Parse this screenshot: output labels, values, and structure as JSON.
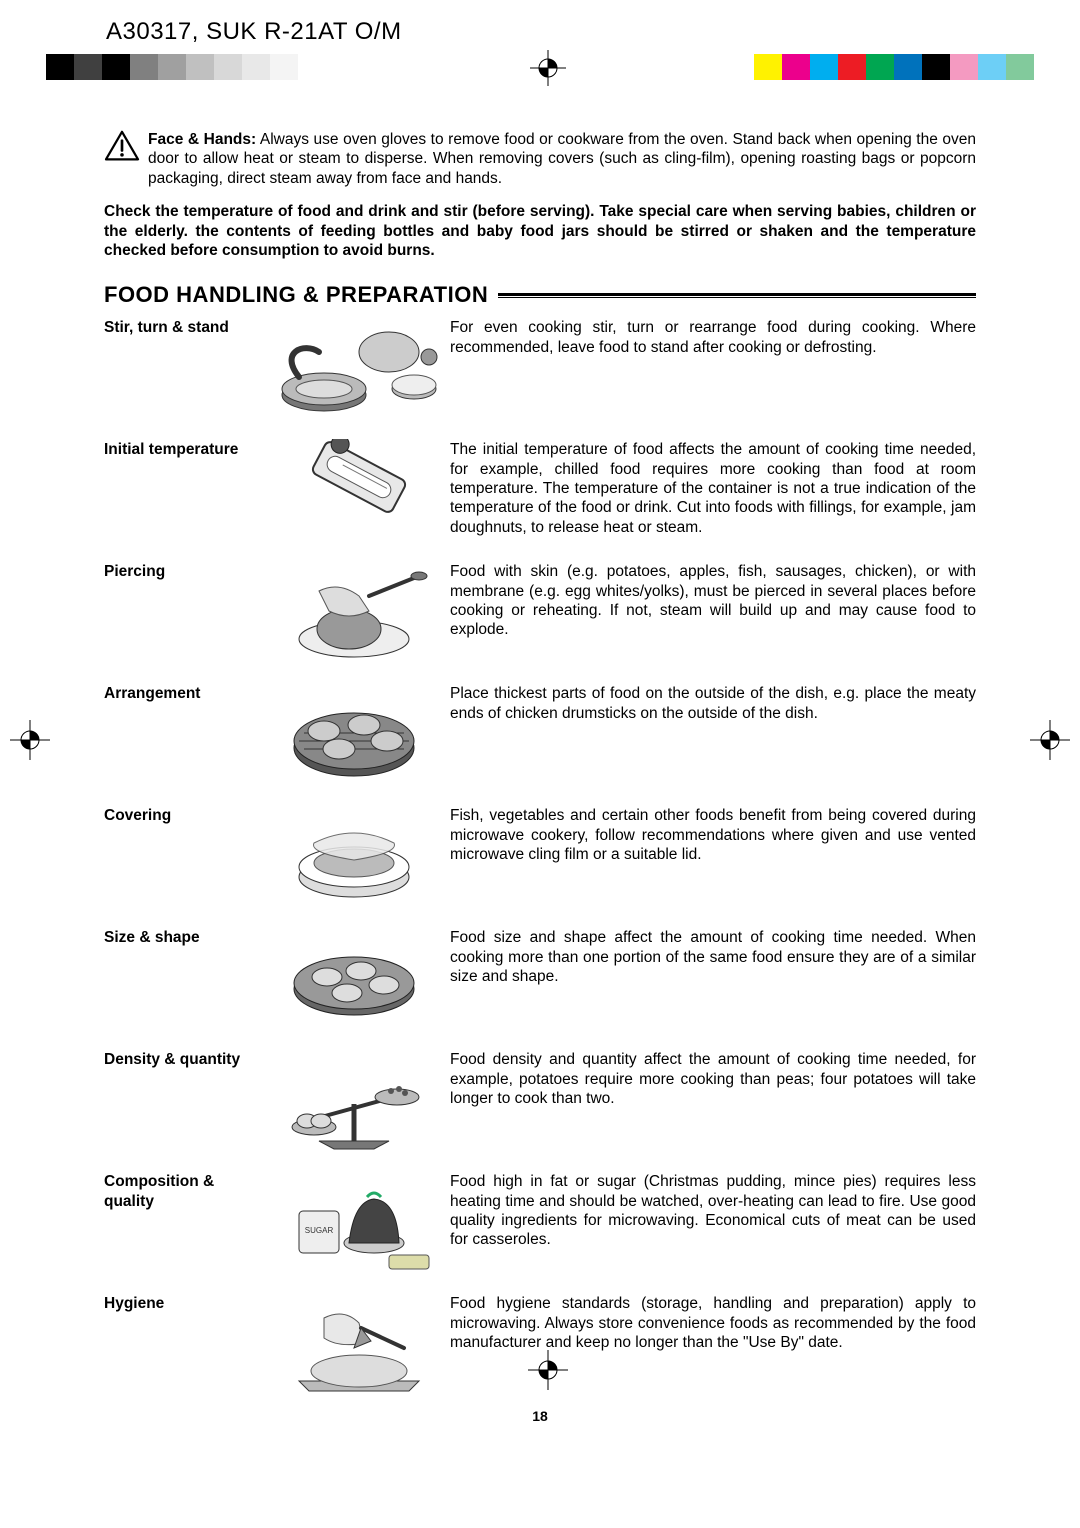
{
  "header_code": "A30317, SUK R-21AT O/M",
  "grayscale_colors": [
    "#000000",
    "#404040",
    "#000000",
    "#808080",
    "#a0a0a0",
    "#c0c0c0",
    "#d8d8d8",
    "#e8e8e8",
    "#f4f4f4",
    "#ffffff"
  ],
  "color_bar_colors": [
    "#fff200",
    "#ec008c",
    "#00aeef",
    "#ed1c24",
    "#00a651",
    "#0072bc",
    "#000000",
    "#f49ac1",
    "#6dcff6",
    "#82ca9c"
  ],
  "warning": {
    "label": "Face & Hands:",
    "text": " Always use oven gloves to remove food or cookware from the oven. Stand back when opening the oven door to allow heat or steam to disperse. When removing covers (such as cling-film), opening roasting bags or popcorn packaging, direct steam away from face and hands."
  },
  "temp_check": "Check the temperature of food and drink and stir (before serving). Take special care when serving babies, children or the elderly. the contents of feeding bottles and baby food jars should be stirred or shaken and the temperature checked before consumption to avoid burns.",
  "section_title": "FOOD HANDLING & PREPARATION",
  "items": [
    {
      "label": "Stir, turn & stand",
      "text": "For even cooking stir, turn or rearrange food during cooking. Where recommended, leave food to stand after cooking or defrosting."
    },
    {
      "label": "Initial temperature",
      "text": "The initial temperature of food affects the amount of cooking time needed, for example, chilled food requires more cooking than food at room temperature. The temperature of the container is not a true indication of the temperature of the food or drink. Cut into foods with fillings, for example, jam doughnuts, to release heat or steam."
    },
    {
      "label": "Piercing",
      "text": "Food with skin (e.g. potatoes, apples, fish, sausages, chicken), or with membrane (e.g. egg whites/yolks), must be pierced in several places before cooking or reheating. If not, steam will build up and may cause food to explode."
    },
    {
      "label": "Arrangement",
      "text": "Place thickest parts of food on the outside of the dish, e.g. place the meaty ends of chicken drumsticks on the outside of the dish."
    },
    {
      "label": "Covering",
      "text": "Fish, vegetables and certain other foods benefit from being covered during microwave cookery, follow recommendations where given and use vented microwave cling film or a suitable lid."
    },
    {
      "label": "Size & shape",
      "text": "Food size and shape affect the amount of cooking time needed. When cooking more than one portion of the same food ensure they are of a similar size and shape."
    },
    {
      "label": "Density & quantity",
      "text": "Food density and quantity affect the amount of cooking time needed, for example, potatoes require more cooking than peas; four potatoes will take longer to cook than two."
    },
    {
      "label": "Composition & quality",
      "text": "Food high in fat or sugar (Christmas pudding, mince pies) requires less heating time and should be watched, over-heating can lead to fire. Use good quality ingredients for microwaving. Economical cuts of meat can be used for casseroles."
    },
    {
      "label": "Hygiene",
      "text": "Food hygiene standards (storage, handling and preparation) apply to microwaving. Always store convenience foods as recommended by the food manufacturer and keep no longer than the \"Use By\" date."
    }
  ],
  "page_number": "18",
  "style": {
    "body_font_size": 15.5,
    "title_font_size": 22,
    "header_font_size": 24,
    "text_color": "#000000",
    "background": "#ffffff"
  }
}
